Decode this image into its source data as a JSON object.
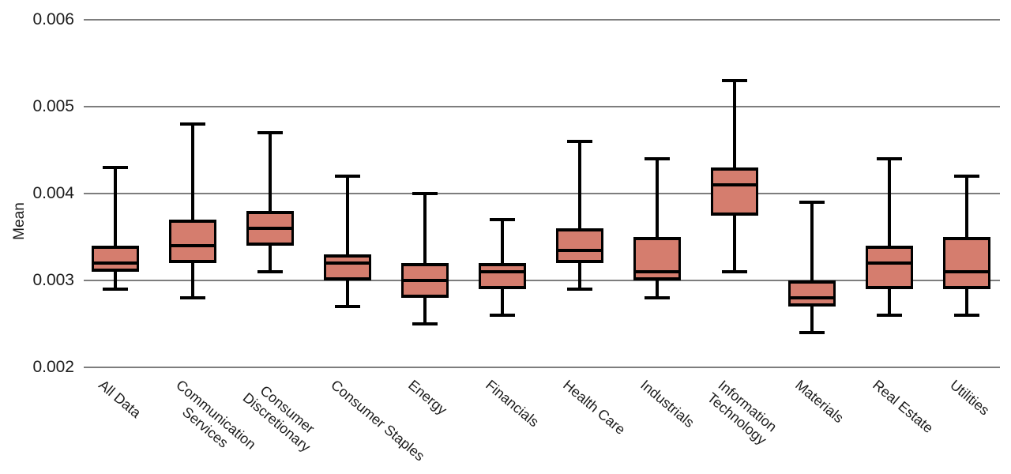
{
  "chart_data": {
    "type": "boxplot",
    "title": "",
    "xlabel": "",
    "ylabel": "Mean",
    "ylim": [
      0.002,
      0.006
    ],
    "yticks": [
      0.002,
      0.003,
      0.004,
      0.005,
      0.006
    ],
    "grid": "horizontal",
    "legend": "none",
    "categories": [
      "All Data",
      "Communication Services",
      "Consumer Discretionary",
      "Consumer Staples",
      "Energy",
      "Financials",
      "Health Care",
      "Industrials",
      "Information Technology",
      "Materials",
      "Real Estate",
      "Utilities"
    ],
    "series": [
      {
        "category": "All Data",
        "label": "All Data",
        "whisker_low": 0.0029,
        "q1": 0.0031,
        "median": 0.0032,
        "q3": 0.0034,
        "whisker_high": 0.0043
      },
      {
        "category": "Communication Services",
        "label": "Communication\nServices",
        "whisker_low": 0.0028,
        "q1": 0.0032,
        "median": 0.0034,
        "q3": 0.0037,
        "whisker_high": 0.0048
      },
      {
        "category": "Consumer Discretionary",
        "label": "Consumer\nDiscretionary",
        "whisker_low": 0.0031,
        "q1": 0.0034,
        "median": 0.0036,
        "q3": 0.0038,
        "whisker_high": 0.0047
      },
      {
        "category": "Consumer Staples",
        "label": "Consumer Staples",
        "whisker_low": 0.0027,
        "q1": 0.003,
        "median": 0.0032,
        "q3": 0.0033,
        "whisker_high": 0.0042
      },
      {
        "category": "Energy",
        "label": "Energy",
        "whisker_low": 0.0025,
        "q1": 0.0028,
        "median": 0.003,
        "q3": 0.0032,
        "whisker_high": 0.004
      },
      {
        "category": "Financials",
        "label": "Financials",
        "whisker_low": 0.0026,
        "q1": 0.0029,
        "median": 0.0031,
        "q3": 0.0032,
        "whisker_high": 0.0037
      },
      {
        "category": "Health Care",
        "label": "Health Care",
        "whisker_low": 0.0029,
        "q1": 0.0032,
        "median": 0.00335,
        "q3": 0.0036,
        "whisker_high": 0.0046
      },
      {
        "category": "Industrials",
        "label": "Industrials",
        "whisker_low": 0.0028,
        "q1": 0.003,
        "median": 0.0031,
        "q3": 0.0035,
        "whisker_high": 0.0044
      },
      {
        "category": "Information Technology",
        "label": "Information\nTechnology",
        "whisker_low": 0.0031,
        "q1": 0.00375,
        "median": 0.0041,
        "q3": 0.0043,
        "whisker_high": 0.0053
      },
      {
        "category": "Materials",
        "label": "Materials",
        "whisker_low": 0.0024,
        "q1": 0.0027,
        "median": 0.0028,
        "q3": 0.003,
        "whisker_high": 0.0039
      },
      {
        "category": "Real Estate",
        "label": "Real Estate",
        "whisker_low": 0.0026,
        "q1": 0.0029,
        "median": 0.0032,
        "q3": 0.0034,
        "whisker_high": 0.0044
      },
      {
        "category": "Utilities",
        "label": "Utilities",
        "whisker_low": 0.0026,
        "q1": 0.0029,
        "median": 0.0031,
        "q3": 0.0035,
        "whisker_high": 0.0042
      }
    ],
    "colors": {
      "box_fill": "#d57d6e",
      "line": "#000000",
      "grid": "#7d7d7d",
      "text": "#1c1c1c"
    }
  }
}
